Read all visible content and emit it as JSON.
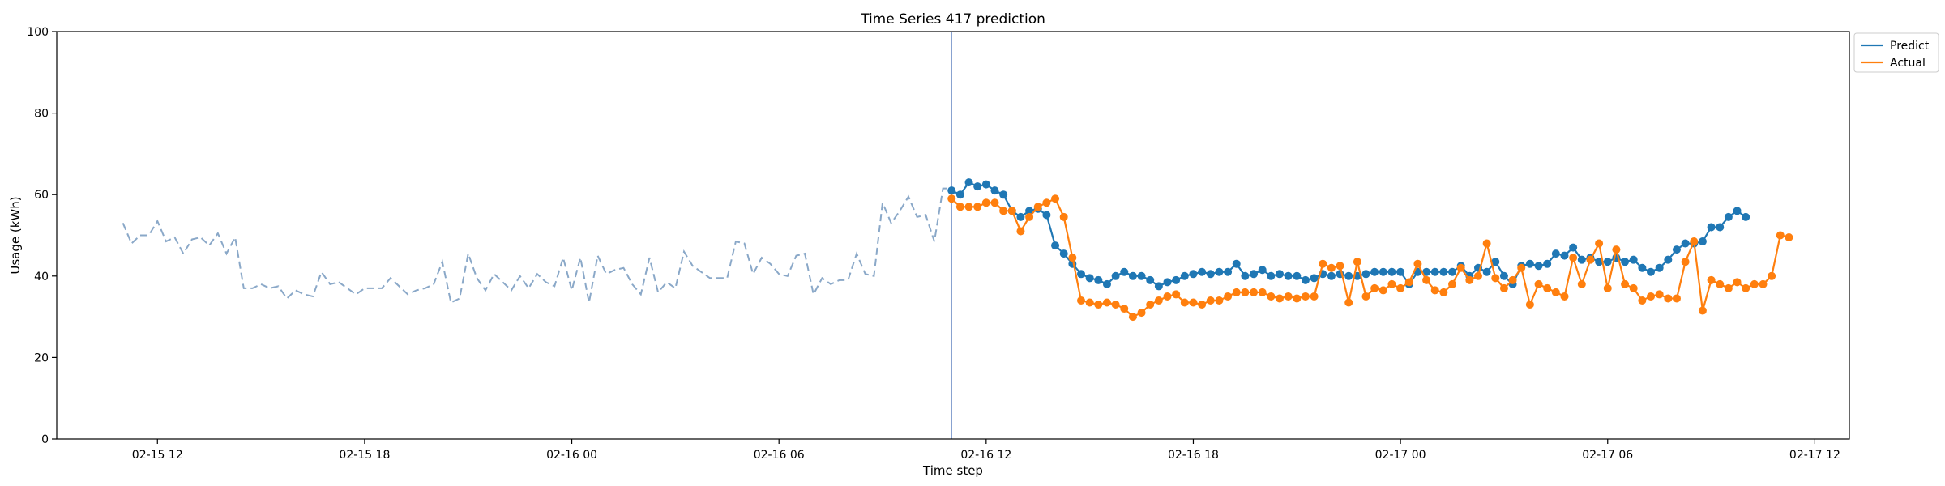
{
  "chart_data": {
    "type": "line",
    "title": "Time Series 417 prediction",
    "xlabel": "Time step",
    "ylabel": "Usage (kWh)",
    "ylim": [
      0,
      100
    ],
    "yticks": [
      0,
      20,
      40,
      60,
      80,
      100
    ],
    "xlim": [
      "2016-02-15 09:05",
      "2016-02-17 13:00"
    ],
    "xticks": [
      {
        "t": "2016-02-15 12:00",
        "label": "02-15 12"
      },
      {
        "t": "2016-02-15 18:00",
        "label": "02-15 18"
      },
      {
        "t": "2016-02-16 00:00",
        "label": "02-16 00"
      },
      {
        "t": "2016-02-16 06:00",
        "label": "02-16 06"
      },
      {
        "t": "2016-02-16 12:00",
        "label": "02-16 12"
      },
      {
        "t": "2016-02-16 18:00",
        "label": "02-16 18"
      },
      {
        "t": "2016-02-17 00:00",
        "label": "02-17 00"
      },
      {
        "t": "2016-02-17 06:00",
        "label": "02-17 06"
      },
      {
        "t": "2016-02-17 12:00",
        "label": "02-17 12"
      }
    ],
    "grid": false,
    "legend_position": "outside-top-right",
    "vline": "2016-02-16 11:00",
    "history": {
      "start": "2016-02-15 11:00",
      "step_minutes": 15,
      "color": "#8aa8c8",
      "values": [
        53,
        48,
        50,
        50,
        53.5,
        48.5,
        49.5,
        45.5,
        49,
        49.5,
        47.5,
        50.5,
        45.5,
        49.5,
        37,
        37,
        38,
        37,
        37.5,
        34.5,
        36.5,
        35.5,
        35,
        41,
        38,
        38.5,
        37,
        35.5,
        37,
        37,
        37,
        39.5,
        37.5,
        35.5,
        36.5,
        37,
        38,
        43.5,
        33.5,
        34.5,
        45.5,
        39.5,
        36.5,
        40.5,
        38.5,
        36.5,
        40,
        37,
        40.5,
        38.5,
        37.5,
        44.5,
        36.5,
        44.5,
        33.5,
        45,
        40.5,
        41.5,
        42,
        38,
        35.5,
        44.5,
        36,
        38.5,
        37,
        46,
        42.5,
        41,
        39.5,
        39.5,
        39.5,
        48.5,
        48,
        40.5,
        44.5,
        43,
        40.5,
        40,
        45,
        45.5,
        35.5,
        39.5,
        38,
        39,
        39,
        45.5,
        40.5,
        40,
        58,
        53,
        56,
        59.5,
        54.5,
        55,
        48.5,
        61.5,
        61.5
      ]
    },
    "series": [
      {
        "name": "Predict",
        "color": "#1f77b4",
        "start": "2016-02-16 11:00",
        "step_minutes": 15,
        "values": [
          61,
          60,
          63,
          62,
          62.5,
          61,
          60,
          56,
          54.5,
          56,
          56.5,
          55,
          47.5,
          45.5,
          43,
          40.5,
          39.5,
          39,
          38,
          40,
          41,
          40,
          40,
          39,
          37.5,
          38.5,
          39,
          40,
          40.5,
          41,
          40.5,
          41,
          41,
          43,
          40,
          40.5,
          41.5,
          40,
          40.5,
          40,
          40,
          39,
          39.5,
          40.5,
          40,
          40.5,
          40,
          40,
          40.5,
          41,
          41,
          41,
          41,
          38,
          41,
          41,
          41,
          41,
          41,
          42.5,
          40,
          42,
          41,
          43.5,
          40,
          38,
          42.5,
          43,
          42.5,
          43,
          45.5,
          45,
          47,
          44,
          44.5,
          43.5,
          43.5,
          44.5,
          43.5,
          44,
          42,
          41,
          42,
          44,
          46.5,
          48,
          48,
          48.5,
          52,
          52,
          54.5,
          56,
          54.5
        ]
      },
      {
        "name": "Actual",
        "color": "#ff7f0e",
        "start": "2016-02-16 11:00",
        "step_minutes": 15,
        "values": [
          59,
          57,
          57,
          57,
          58,
          58,
          56,
          56,
          51,
          54.5,
          57,
          58,
          59,
          54.5,
          44.5,
          34,
          33.5,
          33,
          33.5,
          33,
          32,
          30,
          31,
          33,
          34,
          35,
          35.5,
          33.5,
          33.5,
          33,
          34,
          34,
          35,
          36,
          36,
          36,
          36,
          35,
          34.5,
          35,
          34.5,
          35,
          35,
          43,
          42,
          42.5,
          33.5,
          43.5,
          35,
          37,
          36.5,
          38,
          37,
          38.5,
          43,
          39,
          36.5,
          36,
          38,
          42,
          39,
          40,
          48,
          39.5,
          37,
          39,
          42,
          33,
          38,
          37,
          36,
          35,
          44.5,
          38,
          44,
          48,
          37,
          46.5,
          38,
          37,
          34,
          35,
          35.5,
          34.5,
          34.5,
          43.5,
          48.5,
          31.5,
          39,
          38,
          37,
          38.5,
          37,
          38,
          38,
          40,
          50,
          49.5
        ]
      }
    ]
  }
}
